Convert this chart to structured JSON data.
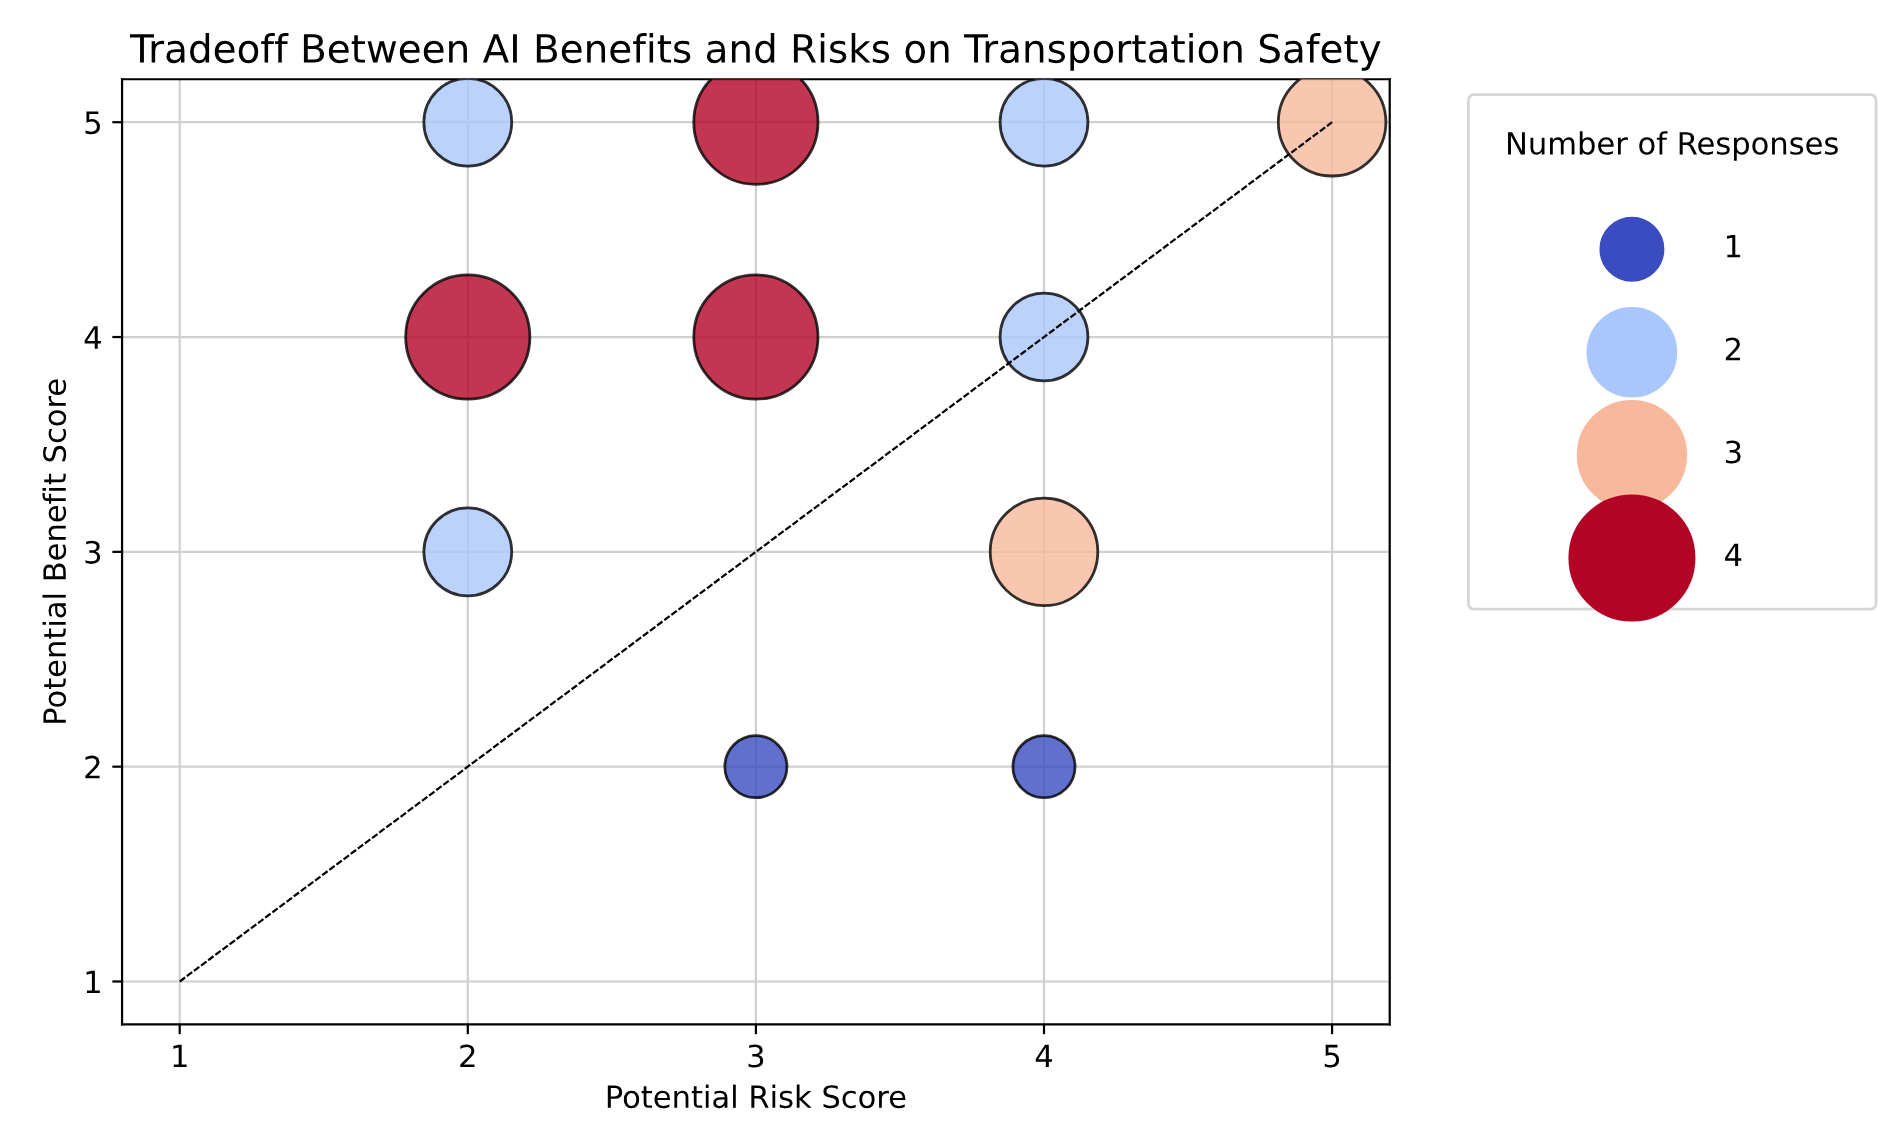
{
  "chart_data": {
    "type": "bubble",
    "title": "Tradeoff Between AI Benefits and Risks on Transportation Safety",
    "xlabel": "Potential Risk Score",
    "ylabel": "Potential Benefit Score",
    "legend_title": "Number of Responses",
    "xlim": [
      0.8,
      5.2
    ],
    "ylim": [
      0.8,
      5.2
    ],
    "xticks": [
      1,
      2,
      3,
      4,
      5
    ],
    "yticks": [
      1,
      2,
      3,
      4,
      5
    ],
    "grid": true,
    "size_legend": [
      1,
      2,
      3,
      4
    ],
    "series": [
      {
        "x": [
          2,
          3,
          4,
          5,
          2,
          3,
          4,
          2,
          4,
          3,
          4
        ],
        "values": [
          5,
          5,
          5,
          5,
          4,
          4,
          4,
          3,
          3,
          2,
          2
        ],
        "sizes": [
          2,
          4,
          2,
          3,
          4,
          4,
          2,
          2,
          3,
          1,
          1
        ],
        "colors": [
          "#aac7fd",
          "#b40426",
          "#aac7fd",
          "#f7b89c",
          "#b40426",
          "#b40426",
          "#aac7fd",
          "#aac7fd",
          "#f7b89c",
          "#3b4cc0",
          "#3b4cc0"
        ]
      },
      {
        "type": "line",
        "x": [
          1,
          5
        ],
        "values": [
          1,
          5
        ],
        "color": "#000000",
        "line_style": "dashed"
      }
    ]
  }
}
